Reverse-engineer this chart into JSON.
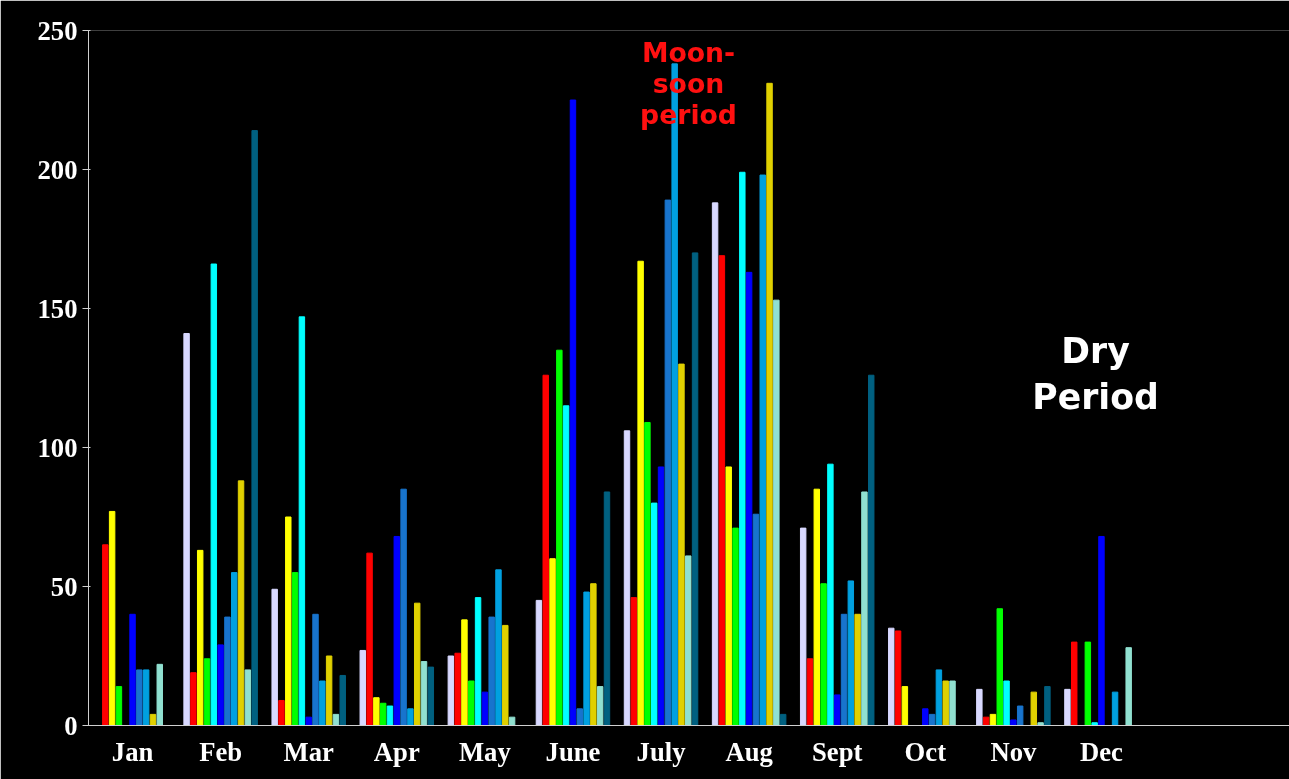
{
  "chart_data": {
    "type": "bar",
    "categories": [
      "Jan",
      "Feb",
      "Mar",
      "Apr",
      "May",
      "June",
      "July",
      "Aug",
      "Sept",
      "Oct",
      "Nov",
      "Dec"
    ],
    "series": [
      {
        "color": "#d8d8ff",
        "values": [
          0,
          141,
          49,
          27,
          25,
          45,
          106,
          188,
          71,
          35,
          13,
          13
        ]
      },
      {
        "color": "#ff0000",
        "values": [
          65,
          19,
          9,
          62,
          26,
          126,
          46,
          169,
          24,
          34,
          3,
          30
        ]
      },
      {
        "color": "#ffff00",
        "values": [
          77,
          63,
          75,
          10,
          38,
          60,
          167,
          93,
          85,
          14,
          4,
          0
        ]
      },
      {
        "color": "#00ff00",
        "values": [
          14,
          24,
          55,
          8,
          16,
          135,
          109,
          71,
          51,
          0,
          42,
          30
        ]
      },
      {
        "color": "#00ffff",
        "values": [
          0,
          166,
          147,
          7,
          46,
          115,
          80,
          199,
          94,
          0,
          16,
          1
        ]
      },
      {
        "color": "#0000ff",
        "values": [
          40,
          29,
          3,
          68,
          12,
          225,
          93,
          163,
          11,
          6,
          2,
          68
        ]
      },
      {
        "color": "#1874cd",
        "values": [
          20,
          39,
          40,
          85,
          39,
          6,
          189,
          76,
          40,
          4,
          7,
          0
        ]
      },
      {
        "color": "#00a0e0",
        "values": [
          20,
          55,
          16,
          6,
          56,
          48,
          238,
          198,
          52,
          20,
          0,
          12
        ]
      },
      {
        "color": "#e0d000",
        "values": [
          4,
          88,
          25,
          44,
          36,
          51,
          130,
          231,
          40,
          16,
          12,
          0
        ]
      },
      {
        "color": "#90e0d0",
        "values": [
          22,
          20,
          4,
          23,
          3,
          14,
          61,
          153,
          84,
          16,
          1,
          28
        ]
      },
      {
        "color": "#006080",
        "values": [
          0,
          214,
          18,
          21,
          0,
          84,
          170,
          4,
          126,
          0,
          14,
          0
        ]
      }
    ],
    "ylim": [
      0,
      250
    ],
    "yticks": [
      0,
      50,
      100,
      150,
      200,
      250
    ],
    "grid": false,
    "annotations": [
      "Moon-\nsoon\nperiod",
      "Dry\nPeriod"
    ]
  }
}
